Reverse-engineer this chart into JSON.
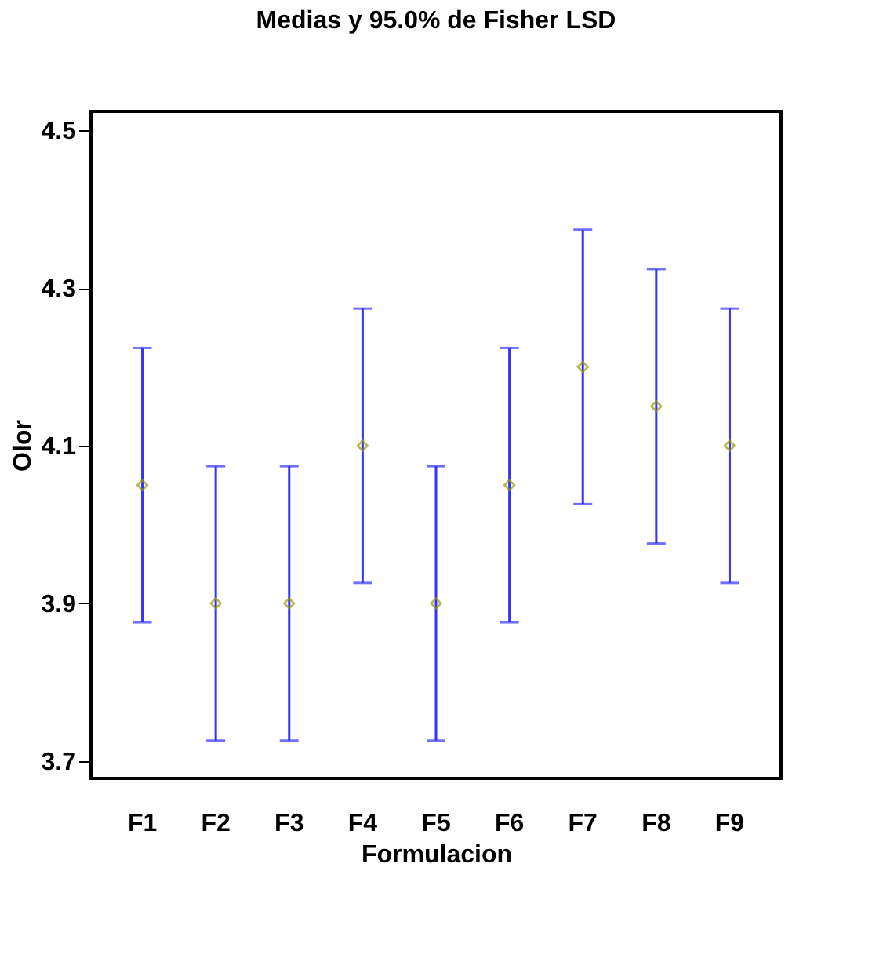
{
  "chart_data": {
    "type": "scatter",
    "title": "Medias y 95.0% de Fisher LSD",
    "xlabel": "Formulacion",
    "ylabel": "Olor",
    "categories": [
      "F1",
      "F2",
      "F3",
      "F4",
      "F5",
      "F6",
      "F7",
      "F8",
      "F9"
    ],
    "series": [
      {
        "color": "#999900",
        "values": [
          4.05,
          3.9,
          3.9,
          4.1,
          3.9,
          4.05,
          4.2,
          4.15,
          4.1
        ],
        "errors": [
          0.174,
          0.174,
          0.174,
          0.174,
          0.174,
          0.174,
          0.174,
          0.174,
          0.174
        ]
      }
    ],
    "ylim": [
      3.678,
      4.524
    ],
    "yticks": [
      3.7,
      3.9,
      4.1,
      4.3,
      4.5
    ],
    "grid": false,
    "marker": "diamond"
  }
}
